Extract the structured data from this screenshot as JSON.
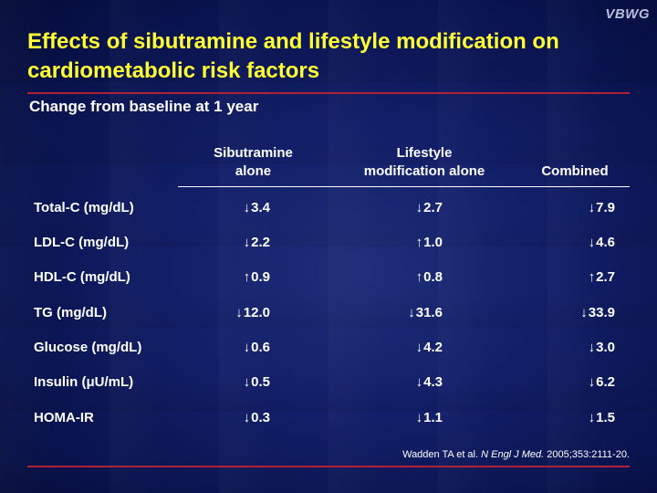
{
  "logo": "VBWG",
  "title": "Effects of sibutramine and lifestyle modification on cardiometabolic risk factors",
  "subtitle": "Change from baseline at 1 year",
  "columns": [
    {
      "line1": "Sibutramine",
      "line2": "alone"
    },
    {
      "line1": "Lifestyle",
      "line2": "modification alone"
    },
    {
      "line1": "",
      "line2": "Combined"
    }
  ],
  "rows": [
    {
      "label": "Total-C (mg/dL)",
      "cells": [
        {
          "dir": "↓",
          "value": "3.4"
        },
        {
          "dir": "↓",
          "value": "2.7"
        },
        {
          "dir": "↓",
          "value": "7.9"
        }
      ]
    },
    {
      "label": "LDL-C (mg/dL)",
      "cells": [
        {
          "dir": "↓",
          "value": "2.2"
        },
        {
          "dir": "↑",
          "value": "1.0"
        },
        {
          "dir": "↓",
          "value": "4.6"
        }
      ]
    },
    {
      "label": "HDL-C (mg/dL)",
      "cells": [
        {
          "dir": "↑",
          "value": "0.9"
        },
        {
          "dir": "↑",
          "value": "0.8"
        },
        {
          "dir": "↑",
          "value": "2.7"
        }
      ]
    },
    {
      "label": "TG (mg/dL)",
      "cells": [
        {
          "dir": "↓",
          "value": "12.0"
        },
        {
          "dir": "↓",
          "value": "31.6"
        },
        {
          "dir": "↓",
          "value": "33.9"
        }
      ]
    },
    {
      "label": "Glucose (mg/dL)",
      "cells": [
        {
          "dir": "↓",
          "value": "0.6"
        },
        {
          "dir": "↓",
          "value": "4.2"
        },
        {
          "dir": "↓",
          "value": "3.0"
        }
      ]
    },
    {
      "label": "Insulin (μU/mL)",
      "cells": [
        {
          "dir": "↓",
          "value": "0.5"
        },
        {
          "dir": "↓",
          "value": "4.3"
        },
        {
          "dir": "↓",
          "value": "6.2"
        }
      ]
    },
    {
      "label": "HOMA-IR",
      "cells": [
        {
          "dir": "↓",
          "value": "0.3"
        },
        {
          "dir": "↓",
          "value": "1.1"
        },
        {
          "dir": "↓",
          "value": "1.5"
        }
      ]
    }
  ],
  "citation": {
    "authors": "Wadden TA et al. ",
    "journal": "N Engl J Med.",
    "details": " 2005;353:2111-20."
  },
  "colors": {
    "title": "#ffff33",
    "rule": "#b0203a",
    "background": "#13206a"
  }
}
